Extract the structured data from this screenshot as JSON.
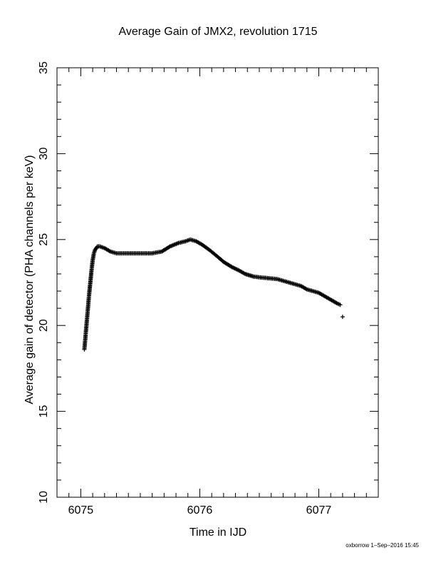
{
  "chart_data": {
    "type": "scatter",
    "title": "Average Gain of JMX2, revolution 1715",
    "xlabel": "Time in IJD",
    "ylabel": "Average gain of detector (PHA channels per keV)",
    "xlim": [
      6074.8,
      6077.5
    ],
    "ylim": [
      10,
      35
    ],
    "xticks": [
      "6075",
      "6076",
      "6077"
    ],
    "yticks": [
      "10",
      "15",
      "20",
      "25",
      "30",
      "35"
    ],
    "grid": false,
    "marker": "+",
    "series": [
      {
        "x": [
          6075.03,
          6075.04,
          6075.05,
          6075.06,
          6075.07,
          6075.08,
          6075.09,
          6075.1,
          6075.11,
          6075.12,
          6075.14,
          6075.16,
          6075.2,
          6075.25,
          6075.3,
          6075.4,
          6075.5,
          6075.6,
          6075.68,
          6075.75,
          6075.82,
          6075.88,
          6075.92,
          6075.97,
          6076.02,
          6076.08,
          6076.15,
          6076.2,
          6076.27,
          6076.33,
          6076.38,
          6076.45,
          6076.5,
          6076.58,
          6076.65,
          6076.7,
          6076.75,
          6076.8,
          6076.85,
          6076.9,
          6076.95,
          6077.0,
          6077.05,
          6077.1,
          6077.15,
          6077.18,
          6077.2
        ],
        "y": [
          18.6,
          19.4,
          20.2,
          21.0,
          21.8,
          22.5,
          23.2,
          23.8,
          24.2,
          24.4,
          24.6,
          24.6,
          24.5,
          24.3,
          24.2,
          24.2,
          24.2,
          24.2,
          24.3,
          24.6,
          24.8,
          24.9,
          25.0,
          24.9,
          24.7,
          24.4,
          24.0,
          23.7,
          23.4,
          23.2,
          23.0,
          22.85,
          22.8,
          22.75,
          22.7,
          22.6,
          22.5,
          22.4,
          22.3,
          22.1,
          22.0,
          21.9,
          21.7,
          21.5,
          21.3,
          21.2,
          20.5
        ]
      }
    ]
  },
  "footer": "oxborrow  1–Sep–2016 15:45"
}
